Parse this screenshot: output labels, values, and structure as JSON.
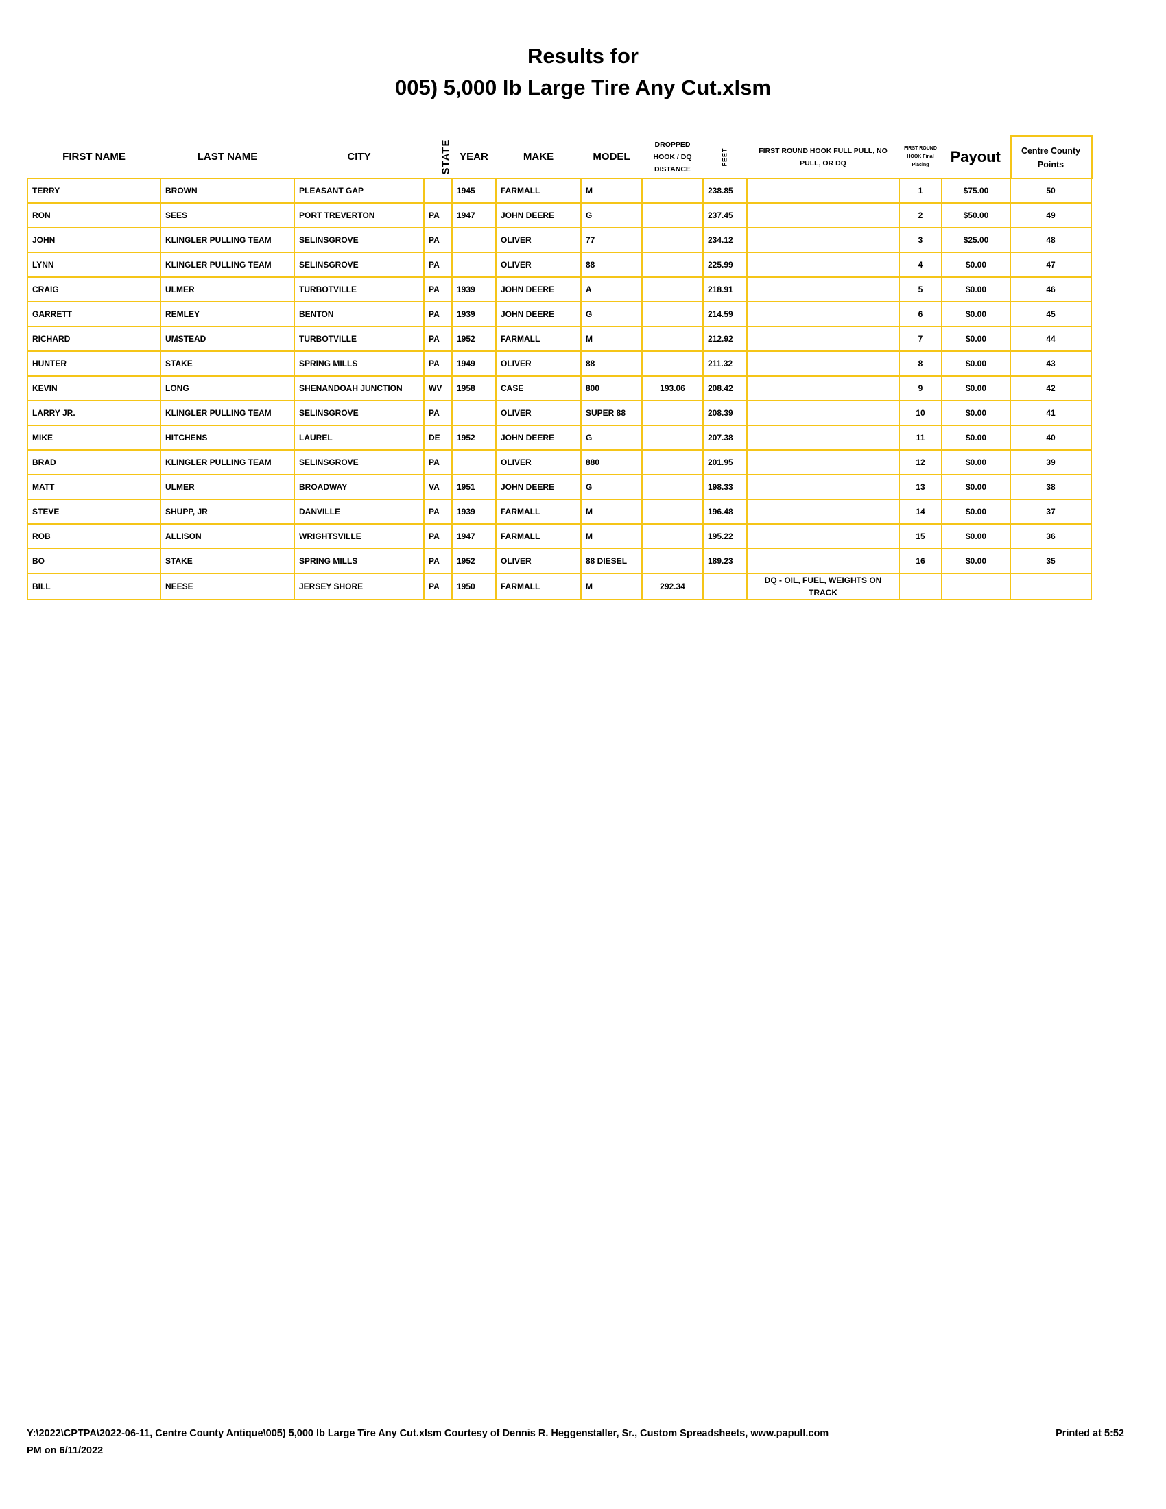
{
  "title_line1": "Results for",
  "title_line2": "005) 5,000 lb Large Tire Any Cut.xlsm",
  "headers": {
    "first_name": "FIRST NAME",
    "last_name": "LAST NAME",
    "city": "CITY",
    "state": "STATE",
    "year": "YEAR",
    "make": "MAKE",
    "model": "MODEL",
    "dropped": "DROPPED HOOK / DQ DISTANCE",
    "feet": "FEET",
    "first_round": "FIRST ROUND HOOK FULL PULL, NO PULL, OR DQ",
    "placing": "FIRST ROUND HOOK Final Placing",
    "payout": "Payout",
    "points": "Centre County Points"
  },
  "rows": [
    {
      "first": "TERRY",
      "last": "BROWN",
      "city": "PLEASANT GAP",
      "state": "",
      "year": "1945",
      "make": "FARMALL",
      "model": "M",
      "dropped": "",
      "feet": "238.85",
      "round": "",
      "place": "1",
      "payout": "$75.00",
      "points": "50"
    },
    {
      "first": "RON",
      "last": "SEES",
      "city": "PORT TREVERTON",
      "state": "PA",
      "year": "1947",
      "make": "JOHN DEERE",
      "model": "G",
      "dropped": "",
      "feet": "237.45",
      "round": "",
      "place": "2",
      "payout": "$50.00",
      "points": "49"
    },
    {
      "first": "JOHN",
      "last": "KLINGLER PULLING TEAM",
      "city": "SELINSGROVE",
      "state": "PA",
      "year": "",
      "make": "OLIVER",
      "model": "77",
      "dropped": "",
      "feet": "234.12",
      "round": "",
      "place": "3",
      "payout": "$25.00",
      "points": "48"
    },
    {
      "first": "LYNN",
      "last": "KLINGLER PULLING TEAM",
      "city": "SELINSGROVE",
      "state": "PA",
      "year": "",
      "make": "OLIVER",
      "model": "88",
      "dropped": "",
      "feet": "225.99",
      "round": "",
      "place": "4",
      "payout": "$0.00",
      "points": "47"
    },
    {
      "first": "CRAIG",
      "last": "ULMER",
      "city": "TURBOTVILLE",
      "state": "PA",
      "year": "1939",
      "make": "JOHN DEERE",
      "model": "A",
      "dropped": "",
      "feet": "218.91",
      "round": "",
      "place": "5",
      "payout": "$0.00",
      "points": "46"
    },
    {
      "first": "GARRETT",
      "last": "REMLEY",
      "city": "BENTON",
      "state": "PA",
      "year": "1939",
      "make": "JOHN DEERE",
      "model": "G",
      "dropped": "",
      "feet": "214.59",
      "round": "",
      "place": "6",
      "payout": "$0.00",
      "points": "45"
    },
    {
      "first": "RICHARD",
      "last": "UMSTEAD",
      "city": "TURBOTVILLE",
      "state": "PA",
      "year": "1952",
      "make": "FARMALL",
      "model": "M",
      "dropped": "",
      "feet": "212.92",
      "round": "",
      "place": "7",
      "payout": "$0.00",
      "points": "44"
    },
    {
      "first": "HUNTER",
      "last": "STAKE",
      "city": "SPRING MILLS",
      "state": "PA",
      "year": "1949",
      "make": "OLIVER",
      "model": "88",
      "dropped": "",
      "feet": "211.32",
      "round": "",
      "place": "8",
      "payout": "$0.00",
      "points": "43"
    },
    {
      "first": "KEVIN",
      "last": "LONG",
      "city": "SHENANDOAH JUNCTION",
      "state": "WV",
      "year": "1958",
      "make": "CASE",
      "model": "800",
      "dropped": "193.06",
      "feet": "208.42",
      "round": "",
      "place": "9",
      "payout": "$0.00",
      "points": "42"
    },
    {
      "first": "LARRY JR.",
      "last": "KLINGLER PULLING TEAM",
      "city": "SELINSGROVE",
      "state": "PA",
      "year": "",
      "make": "OLIVER",
      "model": "SUPER 88",
      "dropped": "",
      "feet": "208.39",
      "round": "",
      "place": "10",
      "payout": "$0.00",
      "points": "41"
    },
    {
      "first": "MIKE",
      "last": "HITCHENS",
      "city": "LAUREL",
      "state": "DE",
      "year": "1952",
      "make": "JOHN DEERE",
      "model": "G",
      "dropped": "",
      "feet": "207.38",
      "round": "",
      "place": "11",
      "payout": "$0.00",
      "points": "40"
    },
    {
      "first": "BRAD",
      "last": "KLINGLER PULLING TEAM",
      "city": "SELINSGROVE",
      "state": "PA",
      "year": "",
      "make": "OLIVER",
      "model": "880",
      "dropped": "",
      "feet": "201.95",
      "round": "",
      "place": "12",
      "payout": "$0.00",
      "points": "39"
    },
    {
      "first": "MATT",
      "last": "ULMER",
      "city": "BROADWAY",
      "state": "VA",
      "year": "1951",
      "make": "JOHN DEERE",
      "model": "G",
      "dropped": "",
      "feet": "198.33",
      "round": "",
      "place": "13",
      "payout": "$0.00",
      "points": "38"
    },
    {
      "first": "STEVE",
      "last": "SHUPP, JR",
      "city": "DANVILLE",
      "state": "PA",
      "year": "1939",
      "make": "FARMALL",
      "model": "M",
      "dropped": "",
      "feet": "196.48",
      "round": "",
      "place": "14",
      "payout": "$0.00",
      "points": "37"
    },
    {
      "first": "ROB",
      "last": "ALLISON",
      "city": "WRIGHTSVILLE",
      "state": "PA",
      "year": "1947",
      "make": "FARMALL",
      "model": "M",
      "dropped": "",
      "feet": "195.22",
      "round": "",
      "place": "15",
      "payout": "$0.00",
      "points": "36"
    },
    {
      "first": "BO",
      "last": "STAKE",
      "city": "SPRING MILLS",
      "state": "PA",
      "year": "1952",
      "make": "OLIVER",
      "model": "88 DIESEL",
      "dropped": "",
      "feet": "189.23",
      "round": "",
      "place": "16",
      "payout": "$0.00",
      "points": "35"
    },
    {
      "first": "BILL",
      "last": "NEESE",
      "city": "JERSEY SHORE",
      "state": "PA",
      "year": "1950",
      "make": "FARMALL",
      "model": "M",
      "dropped": "292.34",
      "feet": "",
      "round": "DQ - OIL, FUEL, WEIGHTS ON TRACK",
      "place": "",
      "payout": "",
      "points": ""
    }
  ],
  "footer": {
    "path": "Y:\\2022\\CPTPA\\2022-06-11, Centre County Antique\\005) 5,000 lb Large Tire Any Cut.xlsm  Courtesy of Dennis R. Heggenstaller, Sr., Custom Spreadsheets, www.papull.com",
    "printed": "Printed at 5:52",
    "printed_cont": "PM on 6/11/2022"
  },
  "colors": {
    "border": "#f5c518"
  }
}
